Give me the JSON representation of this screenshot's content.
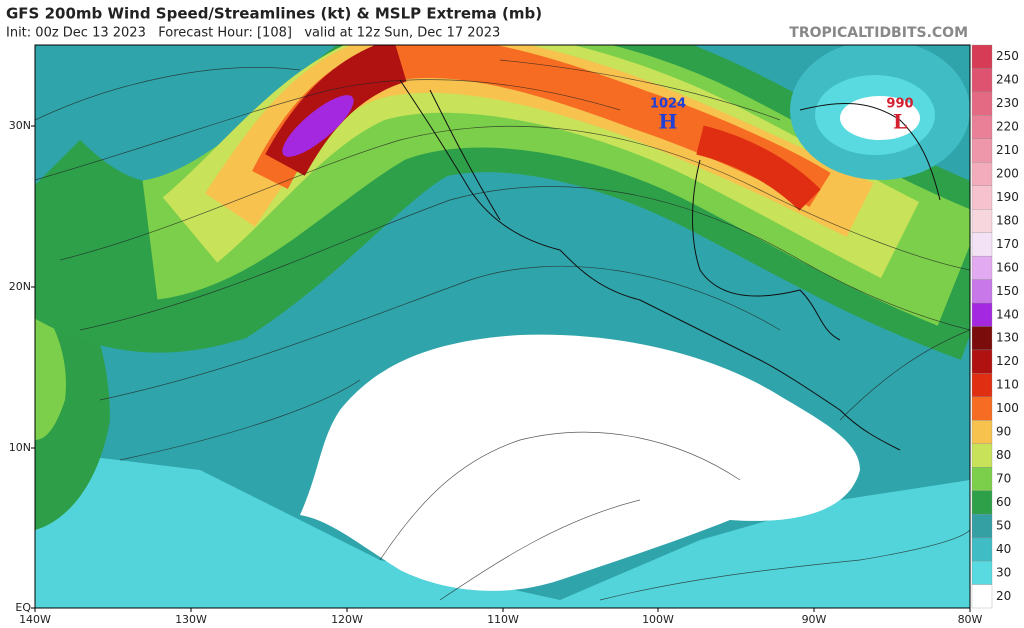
{
  "header": {
    "title": "GFS 200mb Wind Speed/Streamlines (kt) & MSLP Extrema (mb)",
    "subtitle": "Init: 00z Dec 13 2023   Forecast Hour: [108]   valid at 12z Sun, Dec 17 2023",
    "watermark": "TROPICALTIDBITS.COM"
  },
  "map": {
    "latitude_labels": [
      "30N",
      "20N",
      "10N",
      "EQ"
    ],
    "longitude_labels": [
      "140W",
      "130W",
      "120W",
      "110W",
      "100W",
      "90W",
      "80W"
    ],
    "pressure_centers": [
      {
        "label": "H",
        "value": "1024",
        "color": "#2040d8"
      },
      {
        "label": "L",
        "value": "990",
        "color": "#d42030"
      }
    ]
  },
  "colorbar": {
    "labels": [
      "250",
      "240",
      "230",
      "220",
      "210",
      "200",
      "190",
      "180",
      "170",
      "160",
      "150",
      "140",
      "130",
      "120",
      "110",
      "100",
      "90",
      "80",
      "70",
      "60",
      "50",
      "40",
      "30",
      "20"
    ],
    "colors": [
      "#d63c56",
      "#de5470",
      "#e46a84",
      "#ea8098",
      "#ee96aa",
      "#f2acbc",
      "#f5c2ce",
      "#f8d6de",
      "#f3e2f5",
      "#e2aaf0",
      "#c878e8",
      "#a428e0",
      "#7a0c0c",
      "#b01212",
      "#e02e12",
      "#f56c22",
      "#f7c24e",
      "#c8e25a",
      "#7ccf4a",
      "#2ea04a",
      "#34a0a4",
      "#40bcc4",
      "#58dae0",
      "#ffffff"
    ]
  }
}
